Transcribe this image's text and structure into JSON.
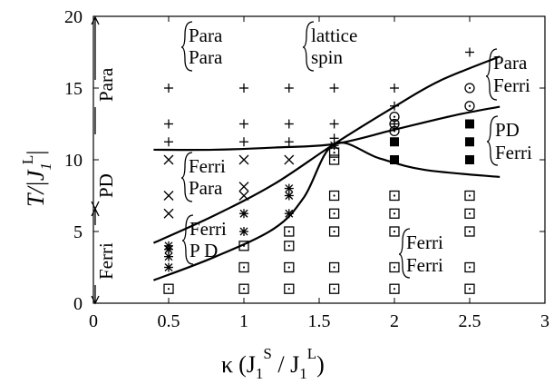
{
  "chart_data": {
    "type": "scatter",
    "title": "",
    "xlabel": {
      "kappa": "κ",
      "open": "(J",
      "sub1": "1",
      "supS": "S",
      "slash": " / J",
      "sub2": "1",
      "supL": "L",
      "close": ")"
    },
    "ylabel": {
      "main": "T/|J",
      "sub": "1",
      "sup": "L",
      "close": "|"
    },
    "xlim": [
      0,
      3
    ],
    "ylim": [
      0,
      20
    ],
    "x_ticks": [
      {
        "value": 0,
        "label": "0"
      },
      {
        "value": 0.5,
        "label": "0.5"
      },
      {
        "value": 1,
        "label": "1"
      },
      {
        "value": 1.5,
        "label": "1.5"
      },
      {
        "value": 2,
        "label": "2"
      },
      {
        "value": 2.5,
        "label": "2.5"
      },
      {
        "value": 3,
        "label": "3"
      }
    ],
    "y_ticks": [
      {
        "value": 0,
        "label": "0"
      },
      {
        "value": 5,
        "label": "5"
      },
      {
        "value": 10,
        "label": "10"
      },
      {
        "value": 15,
        "label": "15"
      },
      {
        "value": 20,
        "label": "20"
      }
    ],
    "grid": false,
    "legend": "none",
    "series": [
      {
        "marker": "plus",
        "points": [
          [
            0.5,
            15
          ],
          [
            0.5,
            12.5
          ],
          [
            0.5,
            11.25
          ],
          [
            1,
            15
          ],
          [
            1,
            12.5
          ],
          [
            1,
            11.25
          ],
          [
            1.3,
            15
          ],
          [
            1.3,
            12.5
          ],
          [
            1.3,
            11.25
          ],
          [
            1.6,
            15
          ],
          [
            1.6,
            12.5
          ],
          [
            1.6,
            11.5
          ],
          [
            2,
            15
          ],
          [
            2,
            13.75
          ],
          [
            2,
            12.5
          ],
          [
            2.5,
            17.5
          ]
        ]
      },
      {
        "marker": "cross",
        "points": [
          [
            0.5,
            10
          ],
          [
            0.5,
            7.5
          ],
          [
            0.5,
            6.25
          ],
          [
            1,
            10
          ],
          [
            1,
            8.125
          ],
          [
            1,
            7.5
          ],
          [
            1.3,
            10
          ]
        ]
      },
      {
        "marker": "star",
        "points": [
          [
            0.5,
            4
          ],
          [
            0.5,
            3.75
          ],
          [
            0.5,
            3.25
          ],
          [
            0.5,
            2.5
          ],
          [
            1,
            6.25
          ],
          [
            1,
            5
          ],
          [
            1.3,
            8
          ],
          [
            1.3,
            7.5
          ],
          [
            1.3,
            6.25
          ],
          [
            1.6,
            11
          ]
        ]
      },
      {
        "marker": "dotted-square",
        "points": [
          [
            0.5,
            1
          ],
          [
            1,
            1
          ],
          [
            1,
            2.5
          ],
          [
            1,
            4
          ],
          [
            1.3,
            1
          ],
          [
            1.3,
            2.5
          ],
          [
            1.3,
            4
          ],
          [
            1.3,
            5
          ],
          [
            1.6,
            1
          ],
          [
            1.6,
            2.5
          ],
          [
            1.6,
            5
          ],
          [
            1.6,
            6.25
          ],
          [
            1.6,
            7.5
          ],
          [
            1.6,
            10
          ],
          [
            1.6,
            10.5
          ],
          [
            2,
            1
          ],
          [
            2,
            2.5
          ],
          [
            2,
            5
          ],
          [
            2,
            6.25
          ],
          [
            2,
            7.5
          ],
          [
            2.5,
            1
          ],
          [
            2.5,
            2.5
          ],
          [
            2.5,
            5
          ],
          [
            2.5,
            6.25
          ],
          [
            2.5,
            7.5
          ]
        ]
      },
      {
        "marker": "dotted-circle",
        "points": [
          [
            2,
            13
          ],
          [
            2,
            12.5
          ],
          [
            2,
            12
          ],
          [
            2.5,
            15
          ],
          [
            2.5,
            13.75
          ]
        ]
      },
      {
        "marker": "filled-square",
        "points": [
          [
            2,
            11.25
          ],
          [
            2,
            10
          ],
          [
            2.5,
            12.5
          ],
          [
            2.5,
            11.25
          ],
          [
            2.5,
            10
          ]
        ]
      }
    ],
    "curves": [
      {
        "name": "",
        "points": [
          [
            0.4,
            10.7
          ],
          [
            0.8,
            10.7
          ],
          [
            1.2,
            10.85
          ],
          [
            1.6,
            11.1
          ],
          [
            2.0,
            12.1
          ],
          [
            2.4,
            13.1
          ],
          [
            2.7,
            13.7
          ]
        ]
      },
      {
        "name": "",
        "points": [
          [
            0.4,
            4.2
          ],
          [
            0.8,
            6.1
          ],
          [
            1.2,
            8.3
          ],
          [
            1.6,
            11.1
          ],
          [
            2.0,
            13.7
          ],
          [
            2.3,
            15.5
          ],
          [
            2.7,
            17.2
          ]
        ]
      },
      {
        "name": "",
        "points": [
          [
            0.4,
            1.6
          ],
          [
            0.8,
            3.2
          ],
          [
            1.2,
            5.2
          ],
          [
            1.4,
            7.4
          ],
          [
            1.6,
            11.1
          ],
          [
            1.9,
            10.1
          ],
          [
            2.2,
            9.3
          ],
          [
            2.7,
            8.8
          ]
        ]
      }
    ],
    "annotations": {
      "para_para": {
        "top": "Para",
        "bottom": "Para"
      },
      "lattice_spin": {
        "top": "lattice",
        "bottom": "spin"
      },
      "para_ferri": {
        "top": "Para",
        "bottom": "Ferri"
      },
      "ferri_para": {
        "top": "Ferri",
        "bottom": "Para"
      },
      "pd_ferri": {
        "top": "PD",
        "bottom": "Ferri"
      },
      "ferri_pd": {
        "top": "Ferri",
        "bottom": "P D"
      },
      "ferri_ferri": {
        "top": "Ferri",
        "bottom": "Ferri"
      }
    },
    "left_labels": {
      "para": "Para",
      "pd": "PD",
      "ferri": "Ferri"
    }
  }
}
